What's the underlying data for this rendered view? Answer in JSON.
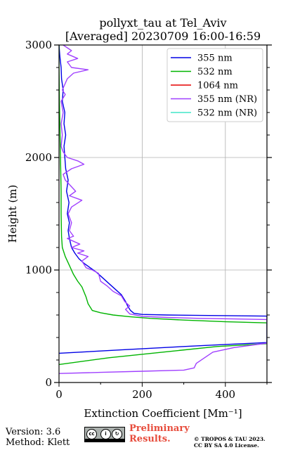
{
  "chart_data": {
    "type": "line",
    "title": "pollyxt_tau at Tel_Aviv",
    "subtitle": "[Averaged] 20230709 16:00-16:59",
    "xlabel": "Extinction Coefficient [Mm⁻¹]",
    "ylabel": "Height (m)",
    "xlim": [
      0,
      500
    ],
    "ylim": [
      0,
      3000
    ],
    "xticks": [
      0,
      200,
      400
    ],
    "yticks": [
      0,
      1000,
      2000,
      3000
    ],
    "grid": true,
    "legend_position": "top-right",
    "series": [
      {
        "name": "355 nm",
        "color": "#0000e6",
        "points": [
          [
            0,
            260
          ],
          [
            150,
            290
          ],
          [
            300,
            320
          ],
          [
            400,
            338
          ],
          [
            500,
            355
          ],
          [
            500,
            590
          ],
          [
            420,
            593
          ],
          [
            340,
            596
          ],
          [
            260,
            600
          ],
          [
            200,
            605
          ],
          [
            180,
            615
          ],
          [
            172,
            640
          ],
          [
            165,
            680
          ],
          [
            160,
            720
          ],
          [
            150,
            780
          ],
          [
            135,
            830
          ],
          [
            120,
            880
          ],
          [
            105,
            930
          ],
          [
            90,
            980
          ],
          [
            75,
            1020
          ],
          [
            60,
            1060
          ],
          [
            48,
            1100
          ],
          [
            38,
            1150
          ],
          [
            30,
            1200
          ],
          [
            25,
            1280
          ],
          [
            22,
            1350
          ],
          [
            25,
            1420
          ],
          [
            20,
            1500
          ],
          [
            24,
            1600
          ],
          [
            18,
            1700
          ],
          [
            22,
            1800
          ],
          [
            16,
            1900
          ],
          [
            14,
            2000
          ],
          [
            12,
            2100
          ],
          [
            16,
            2200
          ],
          [
            12,
            2300
          ],
          [
            14,
            2400
          ],
          [
            8,
            2500
          ],
          [
            10,
            2600
          ],
          [
            6,
            2700
          ],
          [
            5,
            2800
          ],
          [
            2,
            2900
          ],
          [
            0,
            3000
          ]
        ]
      },
      {
        "name": "532 nm",
        "color": "#00b400",
        "points": [
          [
            0,
            160
          ],
          [
            120,
            220
          ],
          [
            250,
            270
          ],
          [
            380,
            320
          ],
          [
            500,
            345
          ],
          [
            500,
            530
          ],
          [
            400,
            540
          ],
          [
            300,
            555
          ],
          [
            220,
            570
          ],
          [
            170,
            585
          ],
          [
            130,
            600
          ],
          [
            100,
            620
          ],
          [
            80,
            640
          ],
          [
            70,
            700
          ],
          [
            65,
            760
          ],
          [
            55,
            850
          ],
          [
            45,
            900
          ],
          [
            35,
            960
          ],
          [
            25,
            1040
          ],
          [
            15,
            1120
          ],
          [
            8,
            1200
          ],
          [
            6,
            1300
          ],
          [
            5,
            1500
          ],
          [
            5,
            1700
          ],
          [
            4,
            1900
          ],
          [
            3,
            2100
          ],
          [
            2,
            2300
          ],
          [
            1,
            2500
          ],
          [
            0,
            2800
          ],
          [
            0,
            3000
          ]
        ]
      },
      {
        "name": "1064 nm",
        "color": "#e60000",
        "points": []
      },
      {
        "name": "355 nm (NR)",
        "color": "#a040ff",
        "points": [
          [
            0,
            80
          ],
          [
            100,
            90
          ],
          [
            200,
            100
          ],
          [
            300,
            110
          ],
          [
            325,
            130
          ],
          [
            330,
            170
          ],
          [
            350,
            220
          ],
          [
            370,
            270
          ],
          [
            420,
            310
          ],
          [
            500,
            350
          ],
          [
            500,
            560
          ],
          [
            420,
            565
          ],
          [
            340,
            570
          ],
          [
            260,
            578
          ],
          [
            200,
            588
          ],
          [
            170,
            610
          ],
          [
            160,
            650
          ],
          [
            170,
            680
          ],
          [
            158,
            720
          ],
          [
            150,
            770
          ],
          [
            130,
            810
          ],
          [
            115,
            860
          ],
          [
            100,
            900
          ],
          [
            95,
            970
          ],
          [
            80,
            1000
          ],
          [
            65,
            1020
          ],
          [
            55,
            1080
          ],
          [
            70,
            1120
          ],
          [
            45,
            1150
          ],
          [
            60,
            1170
          ],
          [
            30,
            1200
          ],
          [
            50,
            1230
          ],
          [
            20,
            1280
          ],
          [
            35,
            1300
          ],
          [
            25,
            1350
          ],
          [
            30,
            1420
          ],
          [
            22,
            1500
          ],
          [
            30,
            1560
          ],
          [
            55,
            1620
          ],
          [
            25,
            1660
          ],
          [
            40,
            1700
          ],
          [
            15,
            1800
          ],
          [
            10,
            1850
          ],
          [
            30,
            1900
          ],
          [
            60,
            1940
          ],
          [
            45,
            1970
          ],
          [
            20,
            2000
          ],
          [
            10,
            2050
          ],
          [
            5,
            2100
          ],
          [
            8,
            2200
          ],
          [
            5,
            2300
          ],
          [
            10,
            2400
          ],
          [
            5,
            2500
          ],
          [
            15,
            2560
          ],
          [
            8,
            2600
          ],
          [
            20,
            2700
          ],
          [
            35,
            2750
          ],
          [
            70,
            2780
          ],
          [
            30,
            2800
          ],
          [
            20,
            2850
          ],
          [
            45,
            2880
          ],
          [
            20,
            2920
          ],
          [
            30,
            2950
          ],
          [
            10,
            3000
          ]
        ]
      },
      {
        "name": "532 nm (NR)",
        "color": "#40e6c8",
        "points": []
      }
    ]
  },
  "footer": {
    "version": "Version: 3.6",
    "method": "Method: Klett",
    "preliminary": "Preliminary Results.",
    "license_line1": "© TROPOS & TAU 2023.",
    "license_line2": "CC BY SA 4.0 License."
  }
}
